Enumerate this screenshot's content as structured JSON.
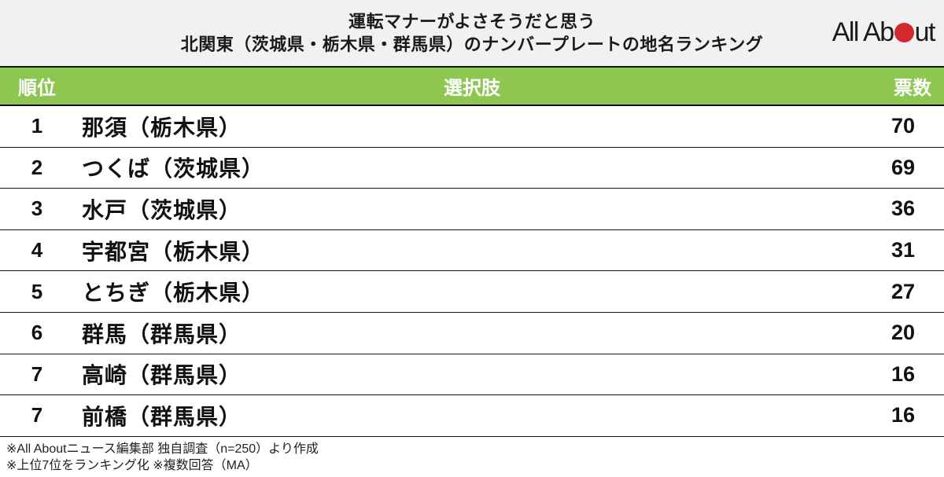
{
  "header": {
    "title_line1": "運転マナーがよさそうだと思う",
    "title_line2": "北関東（茨城県・栃木県・群馬県）のナンバープレートの地名ランキング",
    "logo": {
      "text_before_dot": "All Ab",
      "text_after_dot": "ut",
      "dot_color": "#d2282e"
    }
  },
  "chart_data": {
    "type": "table",
    "title": "運転マナーがよさそうだと思う 北関東（茨城県・栃木県・群馬県）のナンバープレートの地名ランキング",
    "columns": {
      "rank": "順位",
      "choice": "選択肢",
      "votes": "票数"
    },
    "rows": [
      {
        "rank": "1",
        "choice": "那須（栃木県）",
        "votes": "70"
      },
      {
        "rank": "2",
        "choice": "つくば（茨城県）",
        "votes": "69"
      },
      {
        "rank": "3",
        "choice": "水戸（茨城県）",
        "votes": "36"
      },
      {
        "rank": "4",
        "choice": "宇都宮（栃木県）",
        "votes": "31"
      },
      {
        "rank": "5",
        "choice": "とちぎ（栃木県）",
        "votes": "27"
      },
      {
        "rank": "6",
        "choice": "群馬（群馬県）",
        "votes": "20"
      },
      {
        "rank": "7",
        "choice": "高崎（群馬県）",
        "votes": "16"
      },
      {
        "rank": "7",
        "choice": "前橋（群馬県）",
        "votes": "16"
      }
    ],
    "layout": {
      "header_background": "#8dc751",
      "header_text_color": "#ffffff",
      "row_background": "#ffffff",
      "border_color": "#111111"
    }
  },
  "footer": {
    "line1": "※All Aboutニュース編集部 独自調査（n=250）より作成",
    "line2": "※上位7位をランキング化 ※複数回答（MA）"
  }
}
